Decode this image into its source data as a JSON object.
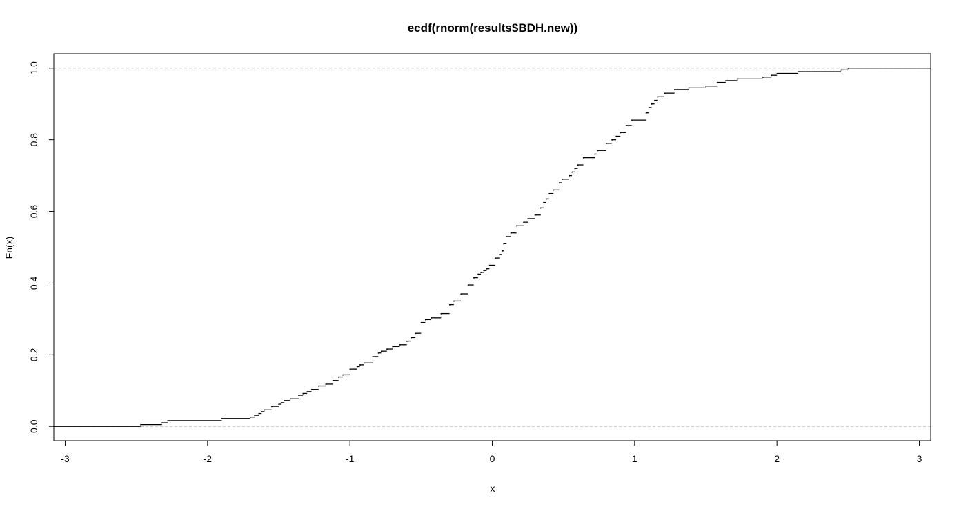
{
  "chart_data": {
    "type": "line",
    "subtype": "ecdf-step",
    "title": "ecdf(rnorm(results$BDH.new))",
    "xlabel": "x",
    "ylabel": "Fn(x)",
    "xlim": [
      -3.08,
      3.08
    ],
    "ylim": [
      -0.04,
      1.04
    ],
    "x_ticks": [
      -3,
      -2,
      -1,
      0,
      1,
      2,
      3
    ],
    "y_ticks": [
      0.0,
      0.2,
      0.4,
      0.6,
      0.8,
      1.0
    ],
    "x_tick_labels": [
      "-3",
      "-2",
      "-1",
      "0",
      "1",
      "2",
      "3"
    ],
    "y_tick_labels": [
      "0.0",
      "0.2",
      "0.4",
      "0.6",
      "0.8",
      "1.0"
    ],
    "reference_lines_y": [
      0,
      1
    ],
    "grid": false,
    "colors": {
      "line": "#000000",
      "reference": "#bebebe",
      "frame": "#000000"
    },
    "x": [
      -3.08,
      -2.47,
      -2.32,
      -2.28,
      -1.9,
      -1.7,
      -1.67,
      -1.64,
      -1.62,
      -1.6,
      -1.55,
      -1.5,
      -1.48,
      -1.46,
      -1.42,
      -1.36,
      -1.33,
      -1.3,
      -1.27,
      -1.22,
      -1.17,
      -1.12,
      -1.08,
      -1.05,
      -1.0,
      -0.95,
      -0.93,
      -0.9,
      -0.84,
      -0.8,
      -0.78,
      -0.74,
      -0.7,
      -0.65,
      -0.6,
      -0.57,
      -0.54,
      -0.5,
      -0.47,
      -0.43,
      -0.36,
      -0.3,
      -0.27,
      -0.22,
      -0.17,
      -0.13,
      -0.1,
      -0.08,
      -0.06,
      -0.04,
      -0.02,
      0.02,
      0.05,
      0.07,
      0.08,
      0.1,
      0.13,
      0.17,
      0.22,
      0.25,
      0.3,
      0.34,
      0.36,
      0.38,
      0.4,
      0.43,
      0.47,
      0.49,
      0.54,
      0.56,
      0.58,
      0.6,
      0.64,
      0.72,
      0.74,
      0.8,
      0.84,
      0.87,
      0.9,
      0.94,
      0.98,
      1.08,
      1.1,
      1.12,
      1.14,
      1.16,
      1.21,
      1.28,
      1.38,
      1.5,
      1.58,
      1.64,
      1.72,
      1.9,
      1.96,
      2.0,
      2.15,
      2.45,
      2.5,
      3.08
    ],
    "y": [
      0.0,
      0.005,
      0.01,
      0.016,
      0.022,
      0.026,
      0.031,
      0.036,
      0.041,
      0.046,
      0.056,
      0.062,
      0.066,
      0.072,
      0.077,
      0.087,
      0.092,
      0.097,
      0.103,
      0.113,
      0.118,
      0.128,
      0.138,
      0.144,
      0.16,
      0.167,
      0.172,
      0.177,
      0.195,
      0.205,
      0.21,
      0.216,
      0.223,
      0.228,
      0.238,
      0.248,
      0.26,
      0.29,
      0.298,
      0.303,
      0.315,
      0.34,
      0.35,
      0.37,
      0.395,
      0.415,
      0.425,
      0.43,
      0.435,
      0.44,
      0.45,
      0.47,
      0.48,
      0.49,
      0.51,
      0.53,
      0.54,
      0.56,
      0.57,
      0.58,
      0.59,
      0.61,
      0.625,
      0.635,
      0.65,
      0.66,
      0.68,
      0.69,
      0.7,
      0.71,
      0.72,
      0.73,
      0.75,
      0.76,
      0.77,
      0.79,
      0.8,
      0.81,
      0.82,
      0.84,
      0.855,
      0.875,
      0.89,
      0.9,
      0.91,
      0.92,
      0.93,
      0.94,
      0.945,
      0.95,
      0.96,
      0.965,
      0.97,
      0.975,
      0.98,
      0.985,
      0.99,
      0.995,
      1.0,
      1.0
    ]
  }
}
